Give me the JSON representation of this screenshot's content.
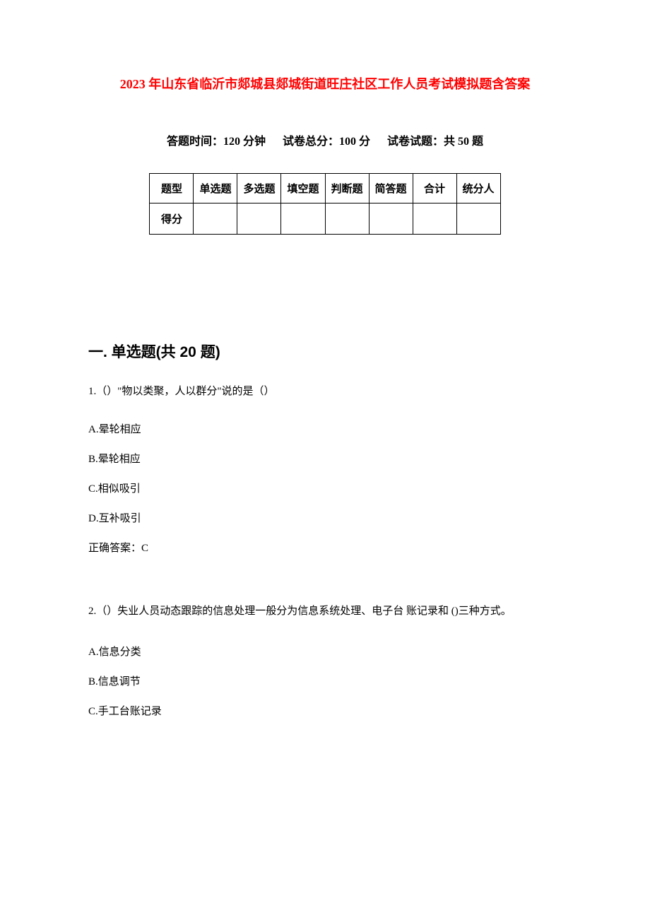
{
  "title": "2023 年山东省临沂市郯城县郯城街道旺庄社区工作人员考试模拟题含答案",
  "meta": {
    "time_label": "答题时间：120 分钟",
    "total_label": "试卷总分：100 分",
    "count_label": "试卷试题：共 50 题"
  },
  "table": {
    "columns": [
      "题型",
      "单选题",
      "多选题",
      "填空题",
      "判断题",
      "简答题",
      "合计",
      "统分人"
    ],
    "score_label": "得分",
    "border_color": "#000000",
    "cell_padding": 10,
    "font_size": 15
  },
  "section1": {
    "header": "一. 单选题(共 20 题)",
    "q1": {
      "text": "1.（）\"物以类聚，人以群分\"说的是（）",
      "options": {
        "a": "A.晕轮相应",
        "b": "B.晕轮相应",
        "c": "C.相似吸引",
        "d": "D.互补吸引"
      },
      "answer": "正确答案：C"
    },
    "q2": {
      "text": "2.（）失业人员动态跟踪的信息处理一般分为信息系统处理、电子台 账记录和 ()三种方式。",
      "options": {
        "a": "A.信息分类",
        "b": "B.信息调节",
        "c": "C.手工台账记录"
      }
    }
  },
  "colors": {
    "title_color": "#ff0000",
    "text_color": "#000000",
    "background": "#ffffff"
  },
  "typography": {
    "title_fontsize": 18,
    "meta_fontsize": 16,
    "section_fontsize": 21,
    "body_fontsize": 15
  }
}
